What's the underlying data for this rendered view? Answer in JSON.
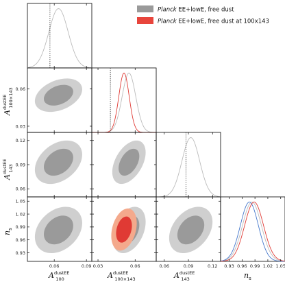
{
  "legend": [
    {
      "label_italic": "Planck",
      "label_rest": " EE+lowE, free dust",
      "color": "#9a9a9a"
    },
    {
      "label_italic": "Planck",
      "label_rest": " EE+lowE, free dust at 100x143",
      "color": "#e8453c"
    }
  ],
  "colors": {
    "grey_outer": "#cfcfcf",
    "grey_inner": "#9a9a9a",
    "red_outer": "#f4a98c",
    "red_inner": "#e03a34",
    "blue_line": "#4477cc",
    "grey_line": "#bbbbbb"
  },
  "labels": {
    "A100_base": "A",
    "A100_sup": "dustEE",
    "A100_sub": "100",
    "A100x143_base": "A",
    "A100x143_sup": "dustEE",
    "A100x143_sub": "100×143",
    "A143_base": "A",
    "A143_sup": "dustEE",
    "A143_sub": "143",
    "ns_base": "n",
    "ns_sub": "s"
  },
  "chart_data": {
    "type": "triangle",
    "parameters": [
      "A_100^dustEE",
      "A_100x143^dustEE",
      "A_143^dustEE",
      "n_s"
    ],
    "ranges": {
      "A100": [
        0.035,
        0.095
      ],
      "A100x143": [
        0.025,
        0.077
      ],
      "A143": [
        0.05,
        0.13
      ],
      "ns": [
        0.91,
        1.06
      ]
    },
    "ticks": {
      "A100": [
        0.06,
        0.09
      ],
      "A100x143": [
        0.03,
        0.06
      ],
      "A143": [
        0.06,
        0.09,
        0.12
      ],
      "ns": [
        0.93,
        0.96,
        0.99,
        1.02,
        1.05
      ]
    },
    "tick_labels": {
      "A100_x": [
        "0.06",
        "0.09"
      ],
      "A100x143_x": [
        "0.03",
        "0.06"
      ],
      "A143_x": [
        "0.06",
        "0.09",
        "0.12"
      ],
      "ns_x": [
        "0.93",
        "0.96",
        "0.99",
        "1.02",
        "1.05"
      ],
      "A100x143_y": [
        "0.03",
        "0.06"
      ],
      "A143_y": [
        "0.06",
        "0.09",
        "0.12"
      ],
      "ns_y": [
        "0.93",
        "0.96",
        "0.99",
        "1.02",
        "1.05"
      ]
    },
    "reference_lines": {
      "A100": 0.056,
      "A100x143": 0.04,
      "A143": 0.087
    },
    "marginals": [
      {
        "param": "A100",
        "series": [
          {
            "name": "Planck EE+lowE, free dust",
            "mean": 0.064,
            "sigma": 0.009
          }
        ]
      },
      {
        "param": "A100x143",
        "series": [
          {
            "name": "Planck EE+lowE, free dust",
            "mean": 0.055,
            "sigma": 0.0055
          },
          {
            "name": "Planck EE+lowE, free dust at 100x143",
            "mean": 0.051,
            "sigma": 0.0042
          }
        ]
      },
      {
        "param": "A143",
        "series": [
          {
            "name": "Planck EE+lowE, free dust",
            "mean": 0.093,
            "sigma": 0.011
          }
        ]
      },
      {
        "param": "ns",
        "series": [
          {
            "name": "Planck EE+lowE, free dust",
            "mean": 0.983,
            "sigma": 0.022
          },
          {
            "name": "blue",
            "mean": 0.977,
            "sigma": 0.021
          },
          {
            "name": "Planck EE+lowE, free dust at 100x143",
            "mean": 0.988,
            "sigma": 0.022
          }
        ]
      }
    ],
    "contours": [
      {
        "x": "A100",
        "y": "A100x143",
        "series": [
          {
            "name": "Planck EE+lowE, free dust",
            "cx": 0.064,
            "cy": 0.055,
            "sx": 0.009,
            "sy": 0.0055,
            "rho": 0.35
          }
        ]
      },
      {
        "x": "A100",
        "y": "A143",
        "series": [
          {
            "name": "Planck EE+lowE, free dust",
            "cx": 0.064,
            "cy": 0.093,
            "sx": 0.009,
            "sy": 0.011,
            "rho": 0.35
          }
        ]
      },
      {
        "x": "A100x143",
        "y": "A143",
        "series": [
          {
            "name": "Planck EE+lowE, free dust",
            "cx": 0.055,
            "cy": 0.093,
            "sx": 0.0055,
            "sy": 0.011,
            "rho": 0.45
          }
        ]
      },
      {
        "x": "A100",
        "y": "ns",
        "series": [
          {
            "name": "Planck EE+lowE, free dust",
            "cx": 0.064,
            "cy": 0.983,
            "sx": 0.009,
            "sy": 0.022,
            "rho": 0.3
          }
        ]
      },
      {
        "x": "A100x143",
        "y": "ns",
        "series": [
          {
            "name": "Planck EE+lowE, free dust",
            "cx": 0.055,
            "cy": 0.983,
            "sx": 0.0055,
            "sy": 0.022,
            "rho": 0.35
          },
          {
            "name": "Planck EE+lowE, free dust at 100x143",
            "cx": 0.051,
            "cy": 0.984,
            "sx": 0.0042,
            "sy": 0.02,
            "rho": 0.3
          }
        ]
      },
      {
        "x": "A143",
        "y": "ns",
        "series": [
          {
            "name": "Planck EE+lowE, free dust",
            "cx": 0.093,
            "cy": 0.983,
            "sx": 0.011,
            "sy": 0.022,
            "rho": 0.35
          }
        ]
      }
    ]
  }
}
